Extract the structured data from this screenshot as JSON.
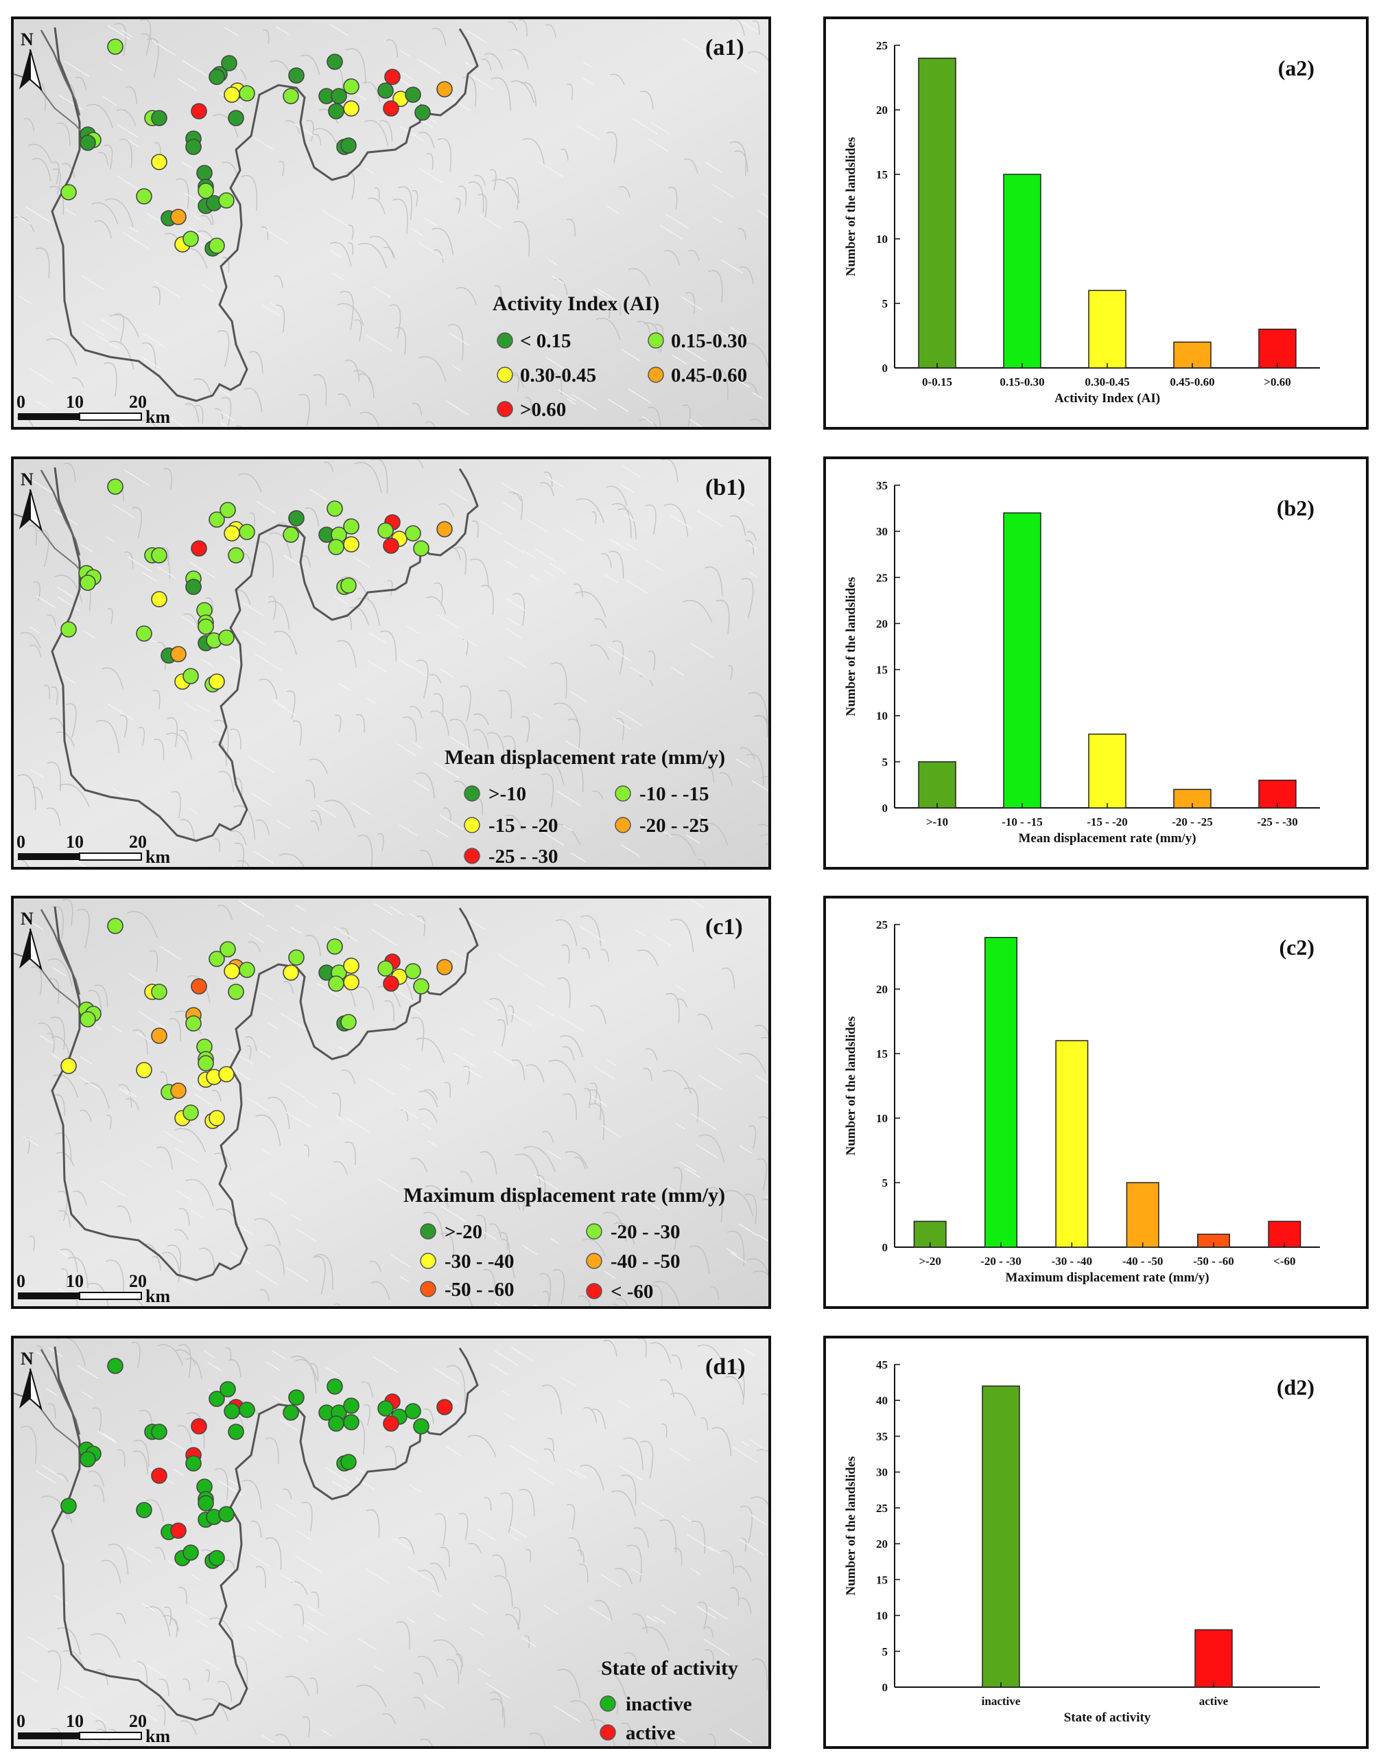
{
  "colors": {
    "dark_green": "#2e9a2e",
    "light_green": "#86ee32",
    "yellow": "#ffff2a",
    "orange": "#ffa51a",
    "red_orange": "#ff5a14",
    "red": "#ff1a1a",
    "state_inactive": "#1bb41b",
    "state_active": "#ff1a1a",
    "bar_dark_green": "#58a81c",
    "bar_green": "#10ee10",
    "bar_yellow": "#ffff22",
    "bar_orange": "#ffa813",
    "bar_red_orange": "#ff5511",
    "bar_red": "#ff1010"
  },
  "maps": [
    {
      "label": "(a1)",
      "north": "N",
      "scale": {
        "ticks": [
          "0",
          "10",
          "20"
        ],
        "unit": "km"
      },
      "legend": {
        "title": "Activity Index (AI)",
        "items": [
          {
            "label": "< 0.15",
            "color": "dark_green"
          },
          {
            "label": "0.15-0.30",
            "color": "light_green"
          },
          {
            "label": "0.30-0.45",
            "color": "yellow"
          },
          {
            "label": "0.45-0.60",
            "color": "orange"
          },
          {
            "label": ">0.60",
            "color": "red"
          }
        ]
      }
    },
    {
      "label": "(b1)",
      "north": "N",
      "scale": {
        "ticks": [
          "0",
          "10",
          "20"
        ],
        "unit": "km"
      },
      "legend": {
        "title": "Mean displacement rate (mm/y)",
        "items": [
          {
            "label": ">-10",
            "color": "dark_green"
          },
          {
            "label": "-10 - -15",
            "color": "light_green"
          },
          {
            "label": "-15 - -20",
            "color": "yellow"
          },
          {
            "label": "-20 - -25",
            "color": "orange"
          },
          {
            "label": "-25 - -30",
            "color": "red"
          }
        ]
      }
    },
    {
      "label": "(c1)",
      "north": "N",
      "scale": {
        "ticks": [
          "0",
          "10",
          "20"
        ],
        "unit": "km"
      },
      "legend": {
        "title": "Maximum displacement rate (mm/y)",
        "items": [
          {
            "label": ">-20",
            "color": "dark_green"
          },
          {
            "label": "-20 - -30",
            "color": "light_green"
          },
          {
            "label": "-30 - -40",
            "color": "yellow"
          },
          {
            "label": "-40 - -50",
            "color": "orange"
          },
          {
            "label": "-50 - -60",
            "color": "red_orange"
          },
          {
            "label": "< -60",
            "color": "red"
          }
        ]
      }
    },
    {
      "label": "(d1)",
      "north": "N",
      "scale": {
        "ticks": [
          "0",
          "10",
          "20"
        ],
        "unit": "km"
      },
      "legend": {
        "title": "State of activity",
        "items": [
          {
            "label": "inactive",
            "color": "state_inactive"
          },
          {
            "label": "active",
            "color": "state_active"
          }
        ]
      }
    }
  ],
  "chart_data": [
    {
      "type": "bar",
      "label": "(a2)",
      "categories": [
        "0-0.15",
        "0.15-0.30",
        "0.30-0.45",
        "0.45-0.60",
        ">0.60"
      ],
      "values": [
        24,
        15,
        6,
        2,
        3
      ],
      "colors": [
        "bar_dark_green",
        "bar_green",
        "bar_yellow",
        "bar_orange",
        "bar_red"
      ],
      "xlabel": "Activity Index (AI)",
      "ylabel": "Number of the landslides",
      "ylim": [
        0,
        25
      ],
      "yticks": [
        0,
        5,
        10,
        15,
        20,
        25
      ]
    },
    {
      "type": "bar",
      "label": "(b2)",
      "categories": [
        ">-10",
        "-10 - -15",
        "-15 - -20",
        "-20 - -25",
        "-25 - -30"
      ],
      "values": [
        5,
        32,
        8,
        2,
        3
      ],
      "colors": [
        "bar_dark_green",
        "bar_green",
        "bar_yellow",
        "bar_orange",
        "bar_red"
      ],
      "xlabel": "Mean displacement rate (mm/y)",
      "ylabel": "Number of the landslides",
      "ylim": [
        0,
        35
      ],
      "yticks": [
        0,
        5,
        10,
        15,
        20,
        25,
        30,
        35
      ]
    },
    {
      "type": "bar",
      "label": "(c2)",
      "categories": [
        ">-20",
        "-20 - -30",
        "-30 - -40",
        "-40 - -50",
        "-50 - -60",
        "<-60"
      ],
      "values": [
        2,
        24,
        16,
        5,
        1,
        2
      ],
      "colors": [
        "bar_dark_green",
        "bar_green",
        "bar_yellow",
        "bar_orange",
        "bar_red_orange",
        "bar_red"
      ],
      "xlabel": "Maximum displacement rate (mm/y)",
      "ylabel": "Number of the landslides",
      "ylim": [
        0,
        25
      ],
      "yticks": [
        0,
        5,
        10,
        15,
        20,
        25
      ]
    },
    {
      "type": "bar",
      "label": "(d2)",
      "categories": [
        "inactive",
        "active"
      ],
      "values": [
        42,
        8
      ],
      "colors": [
        "bar_dark_green",
        "bar_red"
      ],
      "xlabel": "State of activity",
      "ylabel": "Number of the landslides",
      "ylim": [
        0,
        45
      ],
      "yticks": [
        0,
        5,
        10,
        15,
        20,
        25,
        30,
        35,
        40,
        45
      ]
    }
  ]
}
